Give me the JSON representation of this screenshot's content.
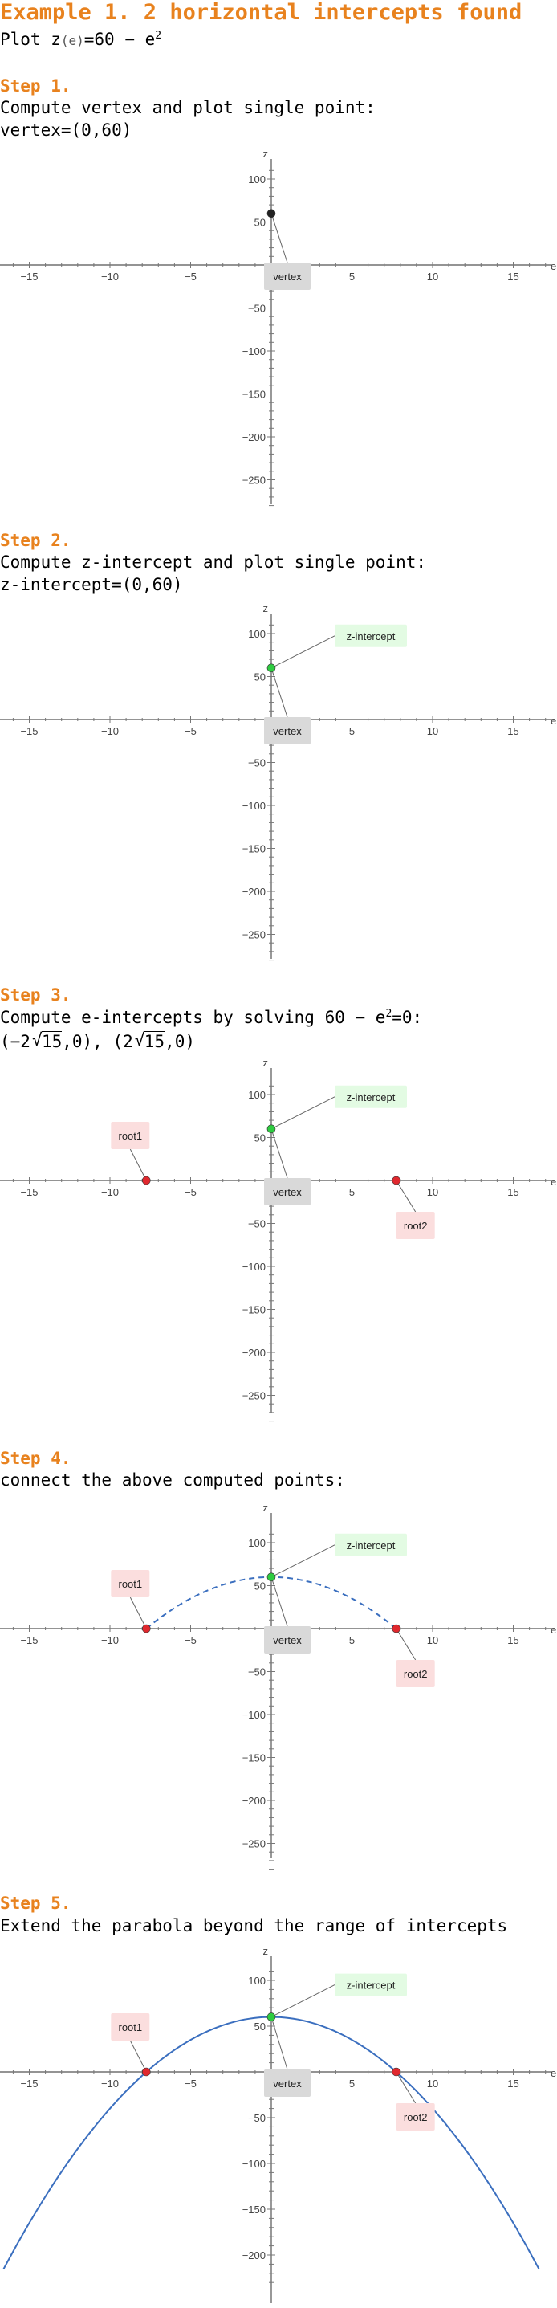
{
  "header": {
    "title": "Example 1. 2 horizontal intercepts found",
    "plot_prefix": "Plot z",
    "plot_var": "(e)",
    "plot_eq": "=60 − e",
    "plot_exp": "2"
  },
  "steps": [
    {
      "label": "Step 1.",
      "line1": "Compute vertex and plot single point:",
      "line2": "vertex=(0,60)"
    },
    {
      "label": "Step 2.",
      "line1": "Compute z-intercept and plot single point:",
      "line2": "z-intercept=(0,60)"
    },
    {
      "label": "Step 3.",
      "line1_a": "Compute e-intercepts by solving 60 − e",
      "line1_sup": "2",
      "line1_b": "=0:",
      "line2_a": "(−2",
      "line2_rad": "15",
      "line2_b": ",0),  (2",
      "line2_c": ",0)"
    },
    {
      "label": "Step 4.",
      "line1": "connect the above computed points:"
    },
    {
      "label": "Step 5.",
      "line1": "Extend the parabola beyond the range of intercepts"
    }
  ],
  "colors": {
    "accent": "#e8821e",
    "point_vertex": "#222222",
    "point_z": "#2ecc40",
    "point_root": "#e0282e",
    "curve": "#3b6fbf",
    "label_vertex_bg": "#d9d9d9",
    "label_z_bg": "#e3fbe3",
    "label_root_bg": "#fbdede"
  },
  "chart_data": [
    {
      "type": "scatter",
      "xlabel": "e",
      "ylabel": "z",
      "xlim": [
        -17,
        17
      ],
      "ylim": [
        -280,
        110
      ],
      "x_ticks": [
        -15,
        -10,
        -5,
        5,
        10,
        15
      ],
      "y_ticks": [
        100,
        50,
        -50,
        -100,
        -150,
        -200,
        -250
      ],
      "points": [
        {
          "name": "vertex",
          "x": 0,
          "y": 60,
          "color": "#222222"
        }
      ],
      "labels": [
        {
          "text": "vertex",
          "anchor": [
            0,
            60
          ],
          "style": "vertex"
        }
      ],
      "curve": null
    },
    {
      "type": "scatter",
      "xlabel": "e",
      "ylabel": "z",
      "xlim": [
        -17,
        17
      ],
      "ylim": [
        -280,
        110
      ],
      "x_ticks": [
        -15,
        -10,
        -5,
        5,
        10,
        15
      ],
      "y_ticks": [
        100,
        50,
        -50,
        -100,
        -150,
        -200,
        -250
      ],
      "points": [
        {
          "name": "z-intercept",
          "x": 0,
          "y": 60,
          "color": "#2ecc40"
        }
      ],
      "labels": [
        {
          "text": "z-intercept",
          "anchor": [
            0,
            60
          ],
          "style": "z"
        },
        {
          "text": "vertex",
          "anchor": [
            0,
            60
          ],
          "style": "vertex"
        }
      ],
      "curve": null
    },
    {
      "type": "scatter",
      "xlabel": "e",
      "ylabel": "z",
      "xlim": [
        -17,
        17
      ],
      "ylim": [
        -280,
        110
      ],
      "x_ticks": [
        -15,
        -10,
        -5,
        5,
        10,
        15
      ],
      "y_ticks": [
        100,
        50,
        -50,
        -100,
        -150,
        -200,
        -250
      ],
      "points": [
        {
          "name": "z-intercept",
          "x": 0,
          "y": 60,
          "color": "#2ecc40"
        },
        {
          "name": "root1",
          "x": -7.746,
          "y": 0,
          "color": "#e0282e"
        },
        {
          "name": "root2",
          "x": 7.746,
          "y": 0,
          "color": "#e0282e"
        }
      ],
      "labels": [
        {
          "text": "z-intercept",
          "anchor": [
            0,
            60
          ],
          "style": "z"
        },
        {
          "text": "root1",
          "anchor": [
            -7.746,
            0
          ],
          "style": "root-up"
        },
        {
          "text": "vertex",
          "anchor": [
            0,
            60
          ],
          "style": "vertex"
        },
        {
          "text": "root2",
          "anchor": [
            7.746,
            0
          ],
          "style": "root-down"
        }
      ],
      "curve": null
    },
    {
      "type": "line",
      "xlabel": "e",
      "ylabel": "z",
      "xlim": [
        -17,
        17
      ],
      "ylim": [
        -280,
        110
      ],
      "x_ticks": [
        -15,
        -10,
        -5,
        5,
        10,
        15
      ],
      "y_ticks": [
        100,
        50,
        -50,
        -100,
        -150,
        -200,
        -250
      ],
      "points": [
        {
          "name": "z-intercept",
          "x": 0,
          "y": 60,
          "color": "#2ecc40"
        },
        {
          "name": "root1",
          "x": -7.746,
          "y": 0,
          "color": "#e0282e"
        },
        {
          "name": "root2",
          "x": 7.746,
          "y": 0,
          "color": "#e0282e"
        }
      ],
      "labels": [
        {
          "text": "z-intercept",
          "anchor": [
            0,
            60
          ],
          "style": "z"
        },
        {
          "text": "root1",
          "anchor": [
            -7.746,
            0
          ],
          "style": "root-up"
        },
        {
          "text": "vertex",
          "anchor": [
            0,
            60
          ],
          "style": "vertex"
        },
        {
          "text": "root2",
          "anchor": [
            7.746,
            0
          ],
          "style": "root-down"
        }
      ],
      "curve": {
        "formula": "z = 60 - e^2",
        "x_range": [
          -7.746,
          7.746
        ],
        "dashed": true
      }
    },
    {
      "type": "line",
      "xlabel": "e",
      "ylabel": "z",
      "xlim": [
        -17,
        17
      ],
      "ylim": [
        -235,
        110
      ],
      "x_ticks": [
        -15,
        -10,
        -5,
        5,
        10,
        15
      ],
      "y_ticks": [
        100,
        50,
        -50,
        -100,
        -150,
        -200
      ],
      "points": [
        {
          "name": "z-intercept",
          "x": 0,
          "y": 60,
          "color": "#2ecc40"
        },
        {
          "name": "root1",
          "x": -7.746,
          "y": 0,
          "color": "#e0282e"
        },
        {
          "name": "root2",
          "x": 7.746,
          "y": 0,
          "color": "#e0282e"
        }
      ],
      "labels": [
        {
          "text": "z-intercept",
          "anchor": [
            0,
            60
          ],
          "style": "z"
        },
        {
          "text": "root1",
          "anchor": [
            -7.746,
            0
          ],
          "style": "root-up"
        },
        {
          "text": "vertex",
          "anchor": [
            0,
            60
          ],
          "style": "vertex"
        },
        {
          "text": "root2",
          "anchor": [
            7.746,
            0
          ],
          "style": "root-down"
        }
      ],
      "curve": {
        "formula": "z = 60 - e^2",
        "x_range": [
          -16.6,
          16.6
        ],
        "dashed": false
      }
    }
  ]
}
